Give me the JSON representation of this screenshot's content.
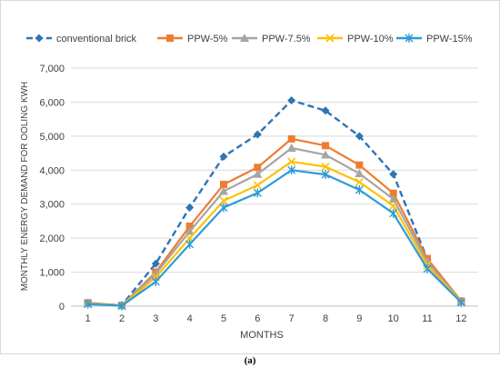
{
  "caption": "(a)",
  "chart_data": {
    "type": "line",
    "xlabel": "MONTHS",
    "ylabel": "MONTHLY ENERGY DEMAND FOR OOLING KWH",
    "categories": [
      "1",
      "2",
      "3",
      "4",
      "5",
      "6",
      "7",
      "8",
      "9",
      "10",
      "11",
      "12"
    ],
    "yticks": [
      "0",
      "1,000",
      "2,000",
      "3,000",
      "4,000",
      "5,000",
      "6,000",
      "7,000"
    ],
    "ylim": [
      0,
      7000
    ],
    "grid": "horizontal",
    "legend": "top",
    "series": [
      {
        "name": "conventional brick",
        "color": "#2e75b6",
        "marker": "diamond",
        "dash": true,
        "values": [
          80,
          30,
          1250,
          2900,
          4400,
          5050,
          6050,
          5750,
          5000,
          3880,
          1380,
          140
        ]
      },
      {
        "name": "PPW-5%",
        "color": "#ed7d31",
        "marker": "square",
        "dash": false,
        "values": [
          100,
          20,
          1000,
          2350,
          3580,
          4080,
          4920,
          4720,
          4150,
          3320,
          1400,
          150
        ]
      },
      {
        "name": "PPW-7.5%",
        "color": "#a5a5a5",
        "marker": "triangle",
        "dash": false,
        "values": [
          90,
          20,
          950,
          2200,
          3380,
          3880,
          4650,
          4450,
          3900,
          3150,
          1300,
          140
        ]
      },
      {
        "name": "PPW-10%",
        "color": "#ffc000",
        "marker": "x",
        "dash": false,
        "values": [
          70,
          15,
          850,
          2000,
          3100,
          3560,
          4250,
          4100,
          3650,
          2950,
          1200,
          120
        ]
      },
      {
        "name": "PPW-15%",
        "color": "#2e9bd6",
        "marker": "star",
        "dash": false,
        "values": [
          60,
          10,
          720,
          1820,
          2900,
          3330,
          4000,
          3870,
          3420,
          2730,
          1100,
          110
        ]
      }
    ]
  }
}
